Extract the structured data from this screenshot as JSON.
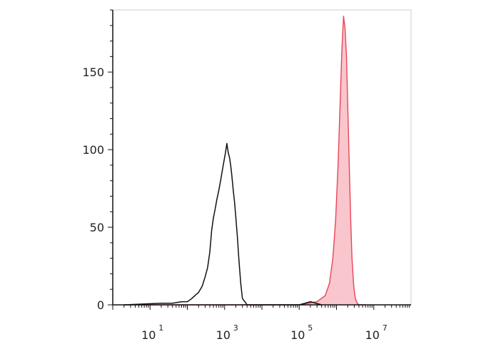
{
  "chart_data": {
    "type": "area",
    "title": "",
    "xlabel": "",
    "ylabel": "",
    "xscale": "log",
    "xlim": [
      1,
      100000000
    ],
    "ylim": [
      0,
      190
    ],
    "grid": false,
    "legend": "none",
    "x_ticks": [
      {
        "base": "10",
        "exp": "1",
        "value": 10
      },
      {
        "base": "10",
        "exp": "3",
        "value": 1000
      },
      {
        "base": "10",
        "exp": "5",
        "value": 100000
      },
      {
        "base": "10",
        "exp": "7",
        "value": 10000000
      }
    ],
    "y_ticks": [
      "0",
      "50",
      "100",
      "150"
    ],
    "y_tick_values": [
      0,
      50,
      100,
      150
    ],
    "series": [
      {
        "type": "line",
        "color": "#111111",
        "points": [
          [
            2,
            0
          ],
          [
            20,
            1
          ],
          [
            40,
            1
          ],
          [
            70,
            2
          ],
          [
            100,
            2
          ],
          [
            130,
            4
          ],
          [
            160,
            6
          ],
          [
            200,
            8
          ],
          [
            250,
            12
          ],
          [
            300,
            18
          ],
          [
            350,
            24
          ],
          [
            400,
            34
          ],
          [
            450,
            48
          ],
          [
            500,
            56
          ],
          [
            560,
            62
          ],
          [
            620,
            68
          ],
          [
            700,
            74
          ],
          [
            780,
            80
          ],
          [
            860,
            86
          ],
          [
            950,
            92
          ],
          [
            1050,
            98
          ],
          [
            1150,
            104
          ],
          [
            1250,
            98
          ],
          [
            1350,
            95
          ],
          [
            1450,
            90
          ],
          [
            1550,
            84
          ],
          [
            1700,
            74
          ],
          [
            1850,
            66
          ],
          [
            2000,
            56
          ],
          [
            2200,
            44
          ],
          [
            2400,
            30
          ],
          [
            2700,
            14
          ],
          [
            3000,
            4
          ],
          [
            3500,
            2
          ],
          [
            4000,
            0
          ],
          [
            100000,
            0
          ],
          [
            200000,
            2
          ],
          [
            400000,
            0
          ]
        ]
      },
      {
        "type": "area",
        "color": "#e8445a",
        "fill": "#f8c6cc",
        "points": [
          [
            2,
            0
          ],
          [
            1000,
            0
          ],
          [
            100000,
            0
          ],
          [
            300000,
            2
          ],
          [
            500000,
            6
          ],
          [
            650000,
            14
          ],
          [
            800000,
            30
          ],
          [
            950000,
            55
          ],
          [
            1100000,
            90
          ],
          [
            1250000,
            130
          ],
          [
            1400000,
            165
          ],
          [
            1550000,
            186
          ],
          [
            1700000,
            178
          ],
          [
            1850000,
            160
          ],
          [
            2000000,
            130
          ],
          [
            2200000,
            90
          ],
          [
            2400000,
            55
          ],
          [
            2600000,
            30
          ],
          [
            2900000,
            12
          ],
          [
            3200000,
            4
          ],
          [
            3600000,
            1
          ],
          [
            4000000,
            0
          ],
          [
            6000000,
            0
          ]
        ]
      }
    ]
  }
}
